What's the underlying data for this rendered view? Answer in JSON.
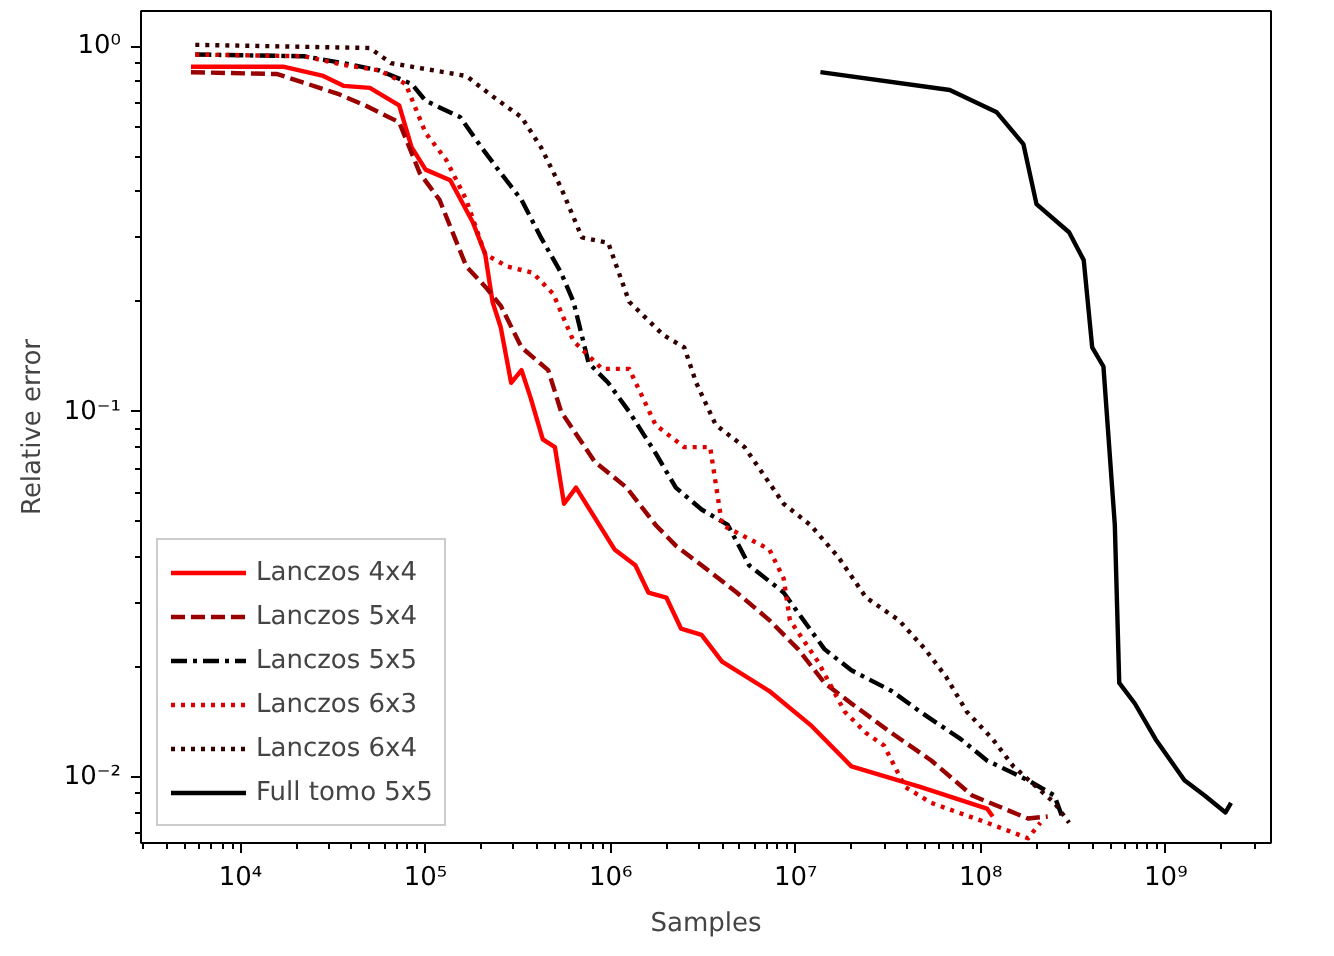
{
  "chart_data": {
    "type": "line",
    "xlabel": "Samples",
    "ylabel": "Relative error",
    "log": "xy",
    "grid": false,
    "legend": "bottom left",
    "marker": "none",
    "xlim": [
      2900,
      3700000000
    ],
    "ylim": [
      0.0066,
      1.25
    ],
    "xticks": [
      {
        "value": 10000,
        "label": "10⁴"
      },
      {
        "value": 100000,
        "label": "10⁵"
      },
      {
        "value": 1000000,
        "label": "10⁶"
      },
      {
        "value": 10000000,
        "label": "10⁷"
      },
      {
        "value": 100000000,
        "label": "10⁸"
      },
      {
        "value": 1000000000,
        "label": "10⁹"
      }
    ],
    "yticks": [
      {
        "value": 0.01,
        "label": "10⁻²"
      },
      {
        "value": 0.1,
        "label": "10⁻¹"
      },
      {
        "value": 1,
        "label": "10⁰"
      }
    ],
    "series": [
      {
        "name": "Lanczos 4x4",
        "color": "#ff0000",
        "line_style": "solid",
        "x": [
          5400,
          17000,
          28000,
          36000,
          50000,
          72000,
          84000,
          100000,
          136000,
          180000,
          210000,
          230000,
          255000,
          290000,
          330000,
          370000,
          430000,
          500000,
          560000,
          650000,
          1050000,
          1360000,
          1600000,
          2000000,
          2400000,
          3100000,
          4000000,
          7200000,
          12000000,
          20000000,
          47000000,
          108000000,
          116000000
        ],
        "values": [
          0.88,
          0.88,
          0.83,
          0.78,
          0.77,
          0.69,
          0.53,
          0.46,
          0.43,
          0.33,
          0.27,
          0.2,
          0.17,
          0.12,
          0.13,
          0.109,
          0.084,
          0.08,
          0.056,
          0.062,
          0.042,
          0.038,
          0.032,
          0.031,
          0.0255,
          0.0245,
          0.0207,
          0.0172,
          0.0139,
          0.0107,
          0.0094,
          0.0082,
          0.0078
        ]
      },
      {
        "name": "Lanczos 5x4",
        "color": "#990000",
        "line_style": "dashed",
        "x": [
          5400,
          15800,
          34000,
          47000,
          72000,
          93000,
          119000,
          166000,
          210000,
          255000,
          330000,
          460000,
          540000,
          820000,
          1220000,
          1750000,
          2250000,
          3100000,
          4800000,
          7200000,
          10300000,
          14300000,
          20000000,
          33000000,
          54000000,
          90000000,
          180000000,
          230000000
        ],
        "values": [
          0.85,
          0.84,
          0.74,
          0.69,
          0.62,
          0.45,
          0.38,
          0.25,
          0.22,
          0.195,
          0.15,
          0.13,
          0.1,
          0.073,
          0.062,
          0.049,
          0.043,
          0.038,
          0.032,
          0.0269,
          0.0224,
          0.0181,
          0.0159,
          0.0132,
          0.0111,
          0.0089,
          0.0077,
          0.0078
        ]
      },
      {
        "name": "Lanczos 5x5",
        "color": "#000000",
        "line_style": "dashdot",
        "x": [
          5700,
          22000,
          36000,
          56000,
          84000,
          100000,
          154000,
          200000,
          255000,
          330000,
          420000,
          540000,
          630000,
          760000,
          970000,
          1260000,
          1750000,
          2250000,
          3100000,
          4300000,
          5600000,
          8600000,
          11000000,
          14300000,
          20000000,
          33000000,
          47000000,
          78000000,
          108000000,
          180000000,
          250000000,
          275000000
        ],
        "values": [
          0.95,
          0.94,
          0.9,
          0.86,
          0.79,
          0.71,
          0.64,
          0.53,
          0.45,
          0.38,
          0.3,
          0.24,
          0.2,
          0.136,
          0.12,
          0.1,
          0.077,
          0.062,
          0.054,
          0.049,
          0.038,
          0.032,
          0.0269,
          0.0224,
          0.0196,
          0.0172,
          0.0151,
          0.0127,
          0.0111,
          0.0098,
          0.0089,
          0.0078
        ]
      },
      {
        "name": "Lanczos 6x3",
        "color": "#dd0000",
        "line_style": "dotted",
        "x": [
          5700,
          22000,
          36000,
          56000,
          78000,
          100000,
          129000,
          166000,
          210000,
          275000,
          380000,
          490000,
          630000,
          900000,
          1260000,
          1750000,
          2500000,
          3450000,
          4000000,
          7200000,
          8600000,
          9300000,
          13200000,
          18400000,
          24000000,
          30000000,
          39000000,
          54000000,
          108000000,
          180000000,
          210000000
        ],
        "values": [
          0.95,
          0.94,
          0.89,
          0.86,
          0.79,
          0.58,
          0.49,
          0.38,
          0.27,
          0.25,
          0.24,
          0.21,
          0.156,
          0.131,
          0.131,
          0.092,
          0.08,
          0.08,
          0.049,
          0.042,
          0.035,
          0.0269,
          0.0207,
          0.0151,
          0.0132,
          0.0122,
          0.0094,
          0.0085,
          0.0075,
          0.0068,
          0.0075
        ]
      },
      {
        "name": "Lanczos 6x4",
        "color": "#330000",
        "line_style": "dotted",
        "x": [
          5700,
          50000,
          65000,
          166000,
          230000,
          330000,
          420000,
          540000,
          700000,
          970000,
          1260000,
          1930000,
          2500000,
          2900000,
          3700000,
          5300000,
          8600000,
          12000000,
          17000000,
          24000000,
          36000000,
          50000000,
          65000000,
          84000000,
          116000000,
          150000000,
          250000000,
          300000000
        ],
        "values": [
          1.01,
          0.99,
          0.9,
          0.83,
          0.73,
          0.64,
          0.53,
          0.41,
          0.3,
          0.29,
          0.2,
          0.162,
          0.15,
          0.12,
          0.092,
          0.08,
          0.056,
          0.049,
          0.04,
          0.031,
          0.0269,
          0.0224,
          0.0188,
          0.0151,
          0.0127,
          0.0107,
          0.0085,
          0.0075
        ]
      },
      {
        "name": "Full tomo 5x5",
        "color": "#000000",
        "line_style": "solid",
        "x": [
          13600000,
          68000000,
          122000000,
          170000000,
          200000000,
          300000000,
          360000000,
          400000000,
          460000000,
          530000000,
          560000000,
          680000000,
          880000000,
          1260000000,
          1620000000,
          2100000000,
          2250000000
        ],
        "values": [
          0.85,
          0.76,
          0.66,
          0.54,
          0.37,
          0.31,
          0.26,
          0.15,
          0.133,
          0.049,
          0.0181,
          0.0159,
          0.0127,
          0.0098,
          0.0089,
          0.008,
          0.0085
        ]
      }
    ]
  }
}
